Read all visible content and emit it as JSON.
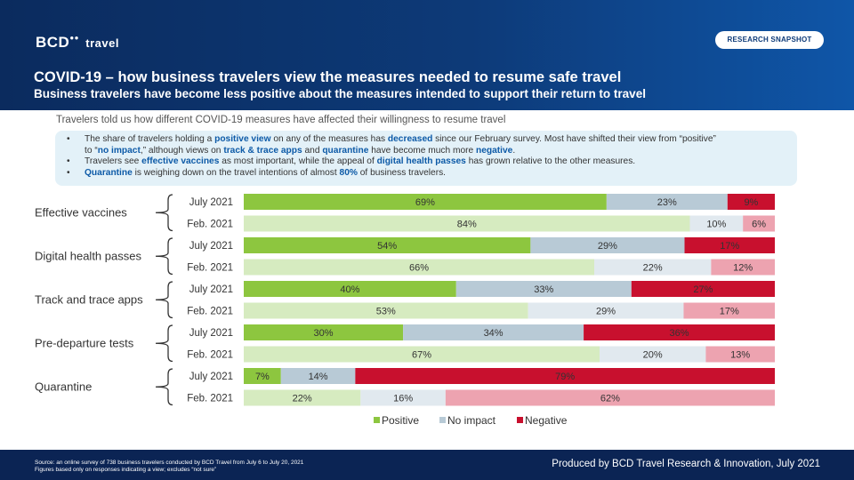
{
  "header": {
    "logo": "BCD",
    "logo_suffix": "travel",
    "badge": "RESEARCH SNAPSHOT",
    "title": "COVID-19 – how business travelers view the measures needed to resume safe travel",
    "subtitle": "Business travelers have become less positive about the measures intended to support their return to travel"
  },
  "intro": "Travelers told us how different COVID-19 measures have affected their willingness to resume travel",
  "notes": {
    "b1_a": "The share of travelers holding a ",
    "b1_b": "positive view",
    "b1_c": " on any of the measures has ",
    "b1_d": "decreased",
    "b1_e": " since our February survey. Most have shifted their view from “positive”",
    "b1_f": "to “",
    "b1_g": "no impact",
    "b1_h": ",” although views on ",
    "b1_i": "track & trace apps",
    "b1_j": " and ",
    "b1_k": "quarantine",
    "b1_l": " have become much more ",
    "b1_m": "negative",
    "b1_n": ".",
    "b2_a": "Travelers see ",
    "b2_b": "effective vaccines",
    "b2_c": " as most important, while the appeal of ",
    "b2_d": "digital health passes",
    "b2_e": " has grown relative to the other measures.",
    "b3_a": "Quarantine",
    "b3_b": " is weighing down on the travel intentions of almost ",
    "b3_c": "80%",
    "b3_d": " of business travelers."
  },
  "colors": {
    "positive_2021": "#8dc63f",
    "positive_feb": "#d6ebc0",
    "noimpact_2021": "#b8cad6",
    "noimpact_feb": "#e1e9ef",
    "negative_2021": "#c8102e",
    "negative_feb": "#eda3b0"
  },
  "chart_data": {
    "type": "bar",
    "orientation": "horizontal",
    "stacked": true,
    "periods": [
      "July 2021",
      "Feb. 2021"
    ],
    "groups": [
      {
        "name": "Effective  vaccines",
        "july_2021": [
          69,
          23,
          9
        ],
        "feb_2021": [
          84,
          10,
          6
        ]
      },
      {
        "name": "Digital health passes",
        "july_2021": [
          54,
          29,
          17
        ],
        "feb_2021": [
          66,
          22,
          12
        ]
      },
      {
        "name": "Track and trace apps",
        "july_2021": [
          40,
          33,
          27
        ],
        "feb_2021": [
          53,
          29,
          17
        ]
      },
      {
        "name": "Pre-departure tests",
        "july_2021": [
          30,
          34,
          36
        ],
        "feb_2021": [
          67,
          20,
          13
        ]
      },
      {
        "name": "Quarantine",
        "july_2021": [
          7,
          14,
          79
        ],
        "feb_2021": [
          22,
          16,
          62
        ]
      }
    ],
    "series": [
      "Positive",
      "No impact",
      "Negative"
    ],
    "unit": "%",
    "legend": "bottom"
  },
  "footer": {
    "source_line1": "Source: an online survey of 738 business travelers conducted by BCD Travel from July 6 to July 20, 2021",
    "source_line2": "Figures based only on responses indicating a view; excludes “not sure”",
    "produced": "Produced by BCD Travel Research & Innovation, July 2021"
  }
}
